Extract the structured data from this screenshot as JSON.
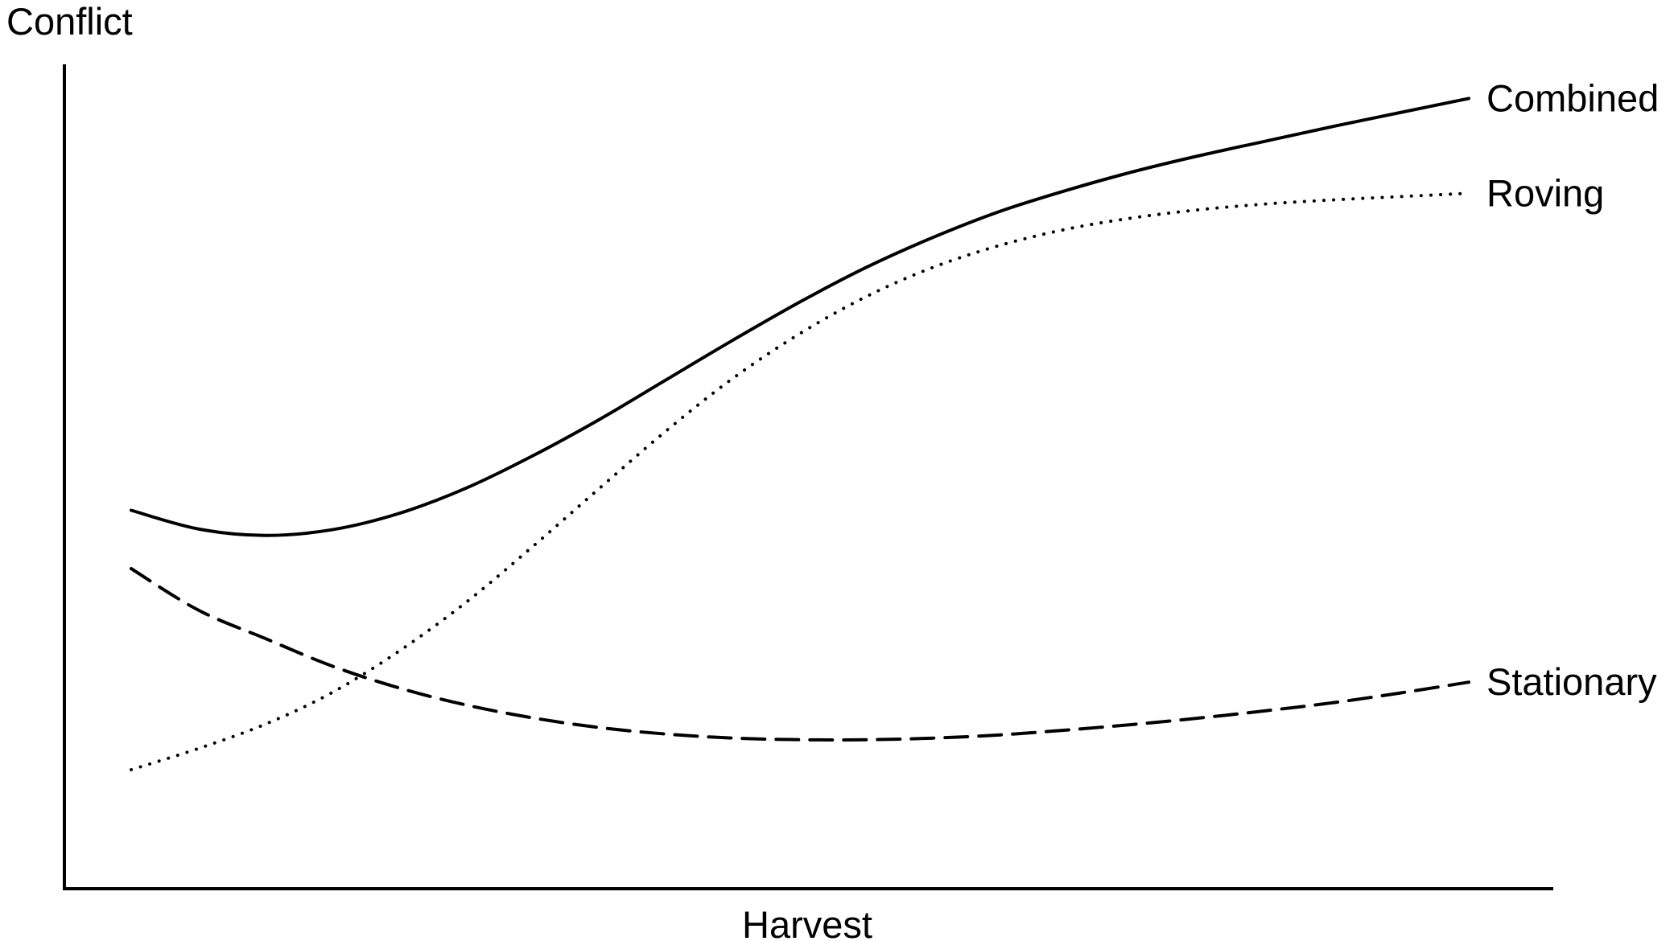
{
  "chart_data": {
    "type": "line",
    "title": "",
    "xlabel": "Harvest",
    "ylabel": "Conflict",
    "ticks": "none",
    "legend": "direct labels at right end of lines",
    "grid": false,
    "xlim": [
      0,
      1
    ],
    "ylim": [
      0,
      1
    ],
    "x": [
      0.0,
      0.05,
      0.1,
      0.15,
      0.2,
      0.25,
      0.3,
      0.35,
      0.4,
      0.45,
      0.5,
      0.55,
      0.6,
      0.65,
      0.7,
      0.75,
      0.8,
      0.85,
      0.9,
      0.95,
      1.0
    ],
    "series": [
      {
        "name": "Combined",
        "style": "solid",
        "color": "#000000",
        "values": [
          0.442,
          0.419,
          0.411,
          0.418,
          0.438,
          0.469,
          0.509,
          0.554,
          0.603,
          0.652,
          0.699,
          0.742,
          0.779,
          0.811,
          0.837,
          0.86,
          0.88,
          0.898,
          0.916,
          0.933,
          0.95
        ]
      },
      {
        "name": "Roving",
        "style": "dotted",
        "color": "#000000",
        "values": [
          0.122,
          0.148,
          0.178,
          0.217,
          0.268,
          0.328,
          0.397,
          0.469,
          0.54,
          0.605,
          0.66,
          0.706,
          0.742,
          0.769,
          0.789,
          0.803,
          0.813,
          0.82,
          0.825,
          0.829,
          0.833
        ]
      },
      {
        "name": "Stationary",
        "style": "dashed",
        "color": "#000000",
        "values": [
          0.37,
          0.319,
          0.284,
          0.25,
          0.223,
          0.202,
          0.186,
          0.174,
          0.166,
          0.161,
          0.159,
          0.159,
          0.161,
          0.165,
          0.171,
          0.178,
          0.186,
          0.195,
          0.205,
          0.217,
          0.23
        ]
      }
    ]
  }
}
